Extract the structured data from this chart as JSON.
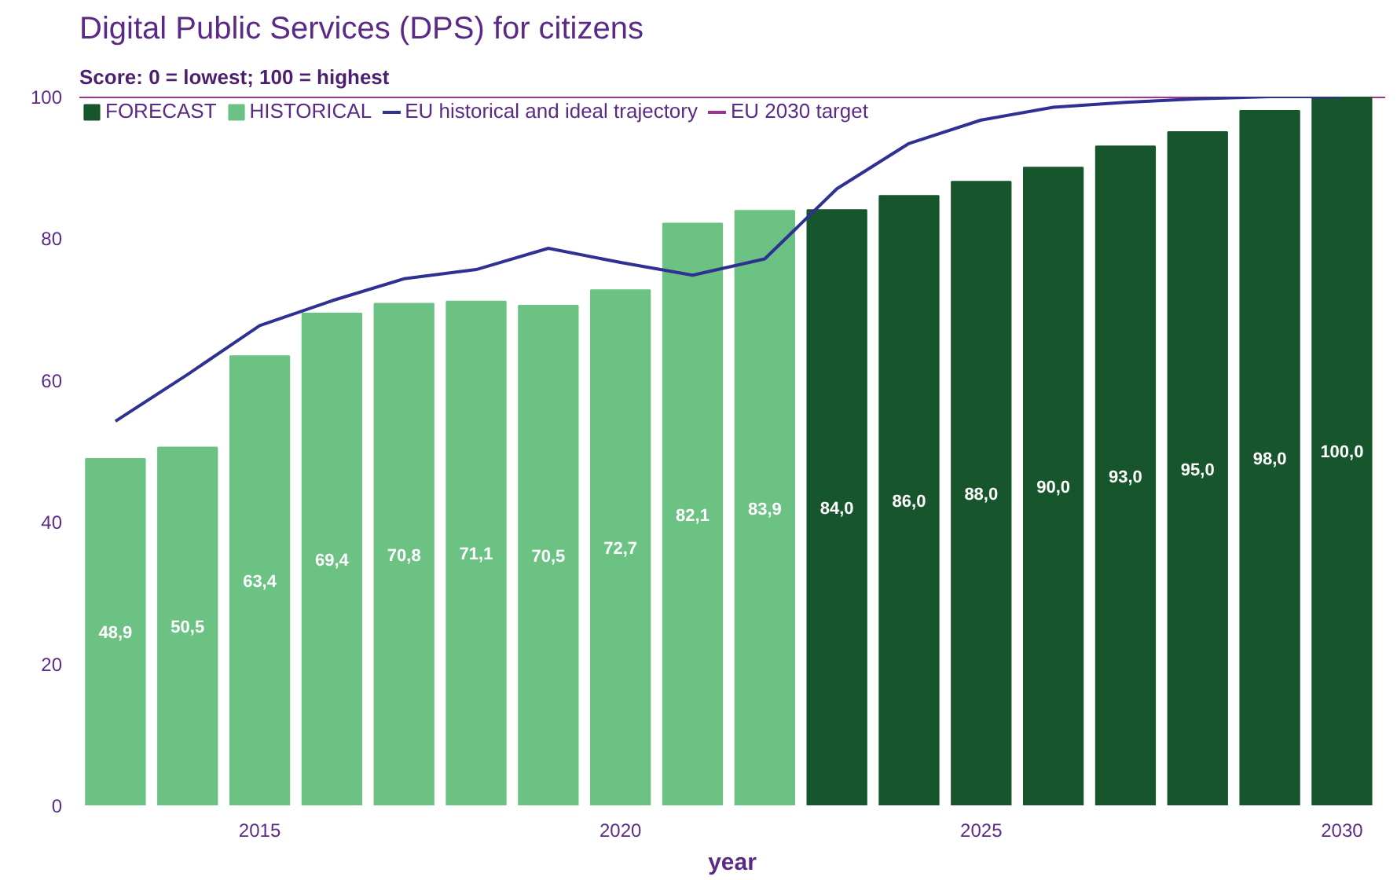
{
  "chart_data": {
    "type": "bar",
    "title": "Digital Public Services (DPS) for citizens",
    "subtitle": "Score: 0 = lowest; 100 = highest",
    "xlabel": "year",
    "x": [
      2013,
      2014,
      2015,
      2016,
      2017,
      2018,
      2019,
      2020,
      2021,
      2022,
      2023,
      2024,
      2025,
      2026,
      2027,
      2028,
      2029,
      2030
    ],
    "series": [
      {
        "name": "FORECAST",
        "color": "#17562c",
        "values": [
          null,
          null,
          null,
          null,
          null,
          null,
          null,
          null,
          null,
          null,
          84.0,
          86.0,
          88.0,
          90.0,
          93.0,
          95.0,
          98.0,
          100.0
        ],
        "value_labels": [
          null,
          null,
          null,
          null,
          null,
          null,
          null,
          null,
          null,
          null,
          "84,0",
          "86,0",
          "88,0",
          "90,0",
          "93,0",
          "95,0",
          "98,0",
          "100,0"
        ]
      },
      {
        "name": "HISTORICAL",
        "color": "#6cc283",
        "values": [
          48.9,
          50.5,
          63.4,
          69.4,
          70.8,
          71.1,
          70.5,
          72.7,
          82.1,
          83.9,
          null,
          null,
          null,
          null,
          null,
          null,
          null,
          null
        ],
        "value_labels": [
          "48,9",
          "50,5",
          "63,4",
          "69,4",
          "70,8",
          "71,1",
          "70,5",
          "72,7",
          "82,1",
          "83,9",
          null,
          null,
          null,
          null,
          null,
          null,
          null,
          null
        ]
      },
      {
        "name": "EU historical and ideal trajectory",
        "type": "line",
        "color": "#2e3192",
        "values": [
          54.2,
          60.8,
          67.7,
          71.2,
          74.3,
          75.6,
          78.6,
          76.6,
          74.8,
          77.1,
          87.0,
          93.4,
          96.7,
          98.5,
          99.2,
          99.7,
          100,
          100
        ]
      }
    ],
    "ref_lines": [
      {
        "axis": "y",
        "value": 100,
        "label": "EU 2030 target",
        "color": "#a0338f"
      }
    ],
    "xlim": [
      2012.5,
      2030.6
    ],
    "xticks": [
      2015,
      2020,
      2025,
      2030
    ],
    "ylim": [
      0,
      100
    ],
    "yticks": [
      0,
      20,
      40,
      60,
      80,
      100
    ],
    "legend": "top left",
    "grid": false
  }
}
